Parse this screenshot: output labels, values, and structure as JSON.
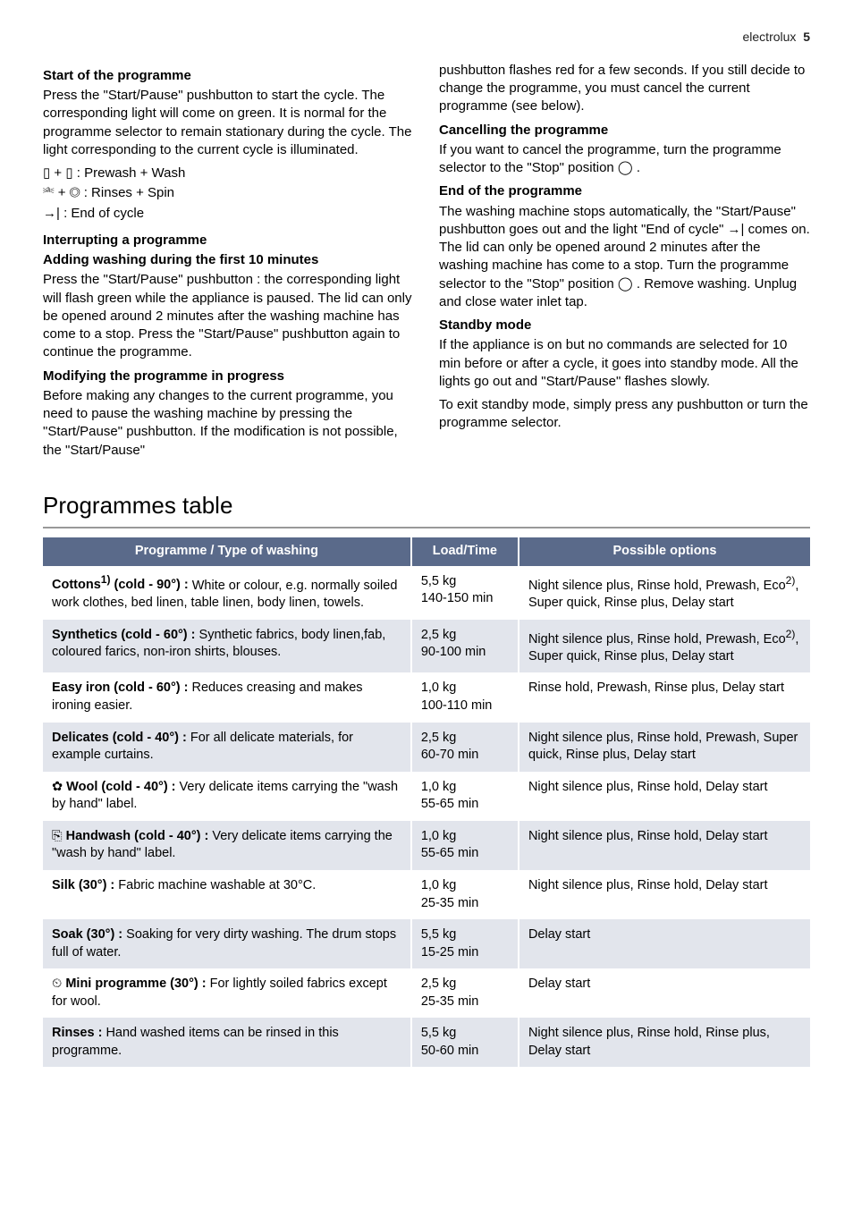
{
  "header": {
    "brand": "electrolux",
    "pagenum": "5"
  },
  "left": {
    "h1": "Start of the programme",
    "p1": "Press the \"Start/Pause\" pushbutton to start the cycle. The corresponding light will come on green. It is normal for the programme selector to remain stationary during the cycle. The light corresponding to the current cycle is illuminated.",
    "icon1": "▯ + ▯ : Prewash + Wash",
    "icon2": "⎃ + ◎ : Rinses + Spin",
    "icon3": "→| : End of cycle",
    "h2": "Interrupting a programme",
    "h2sub": "Adding washing during the first 10 minutes",
    "p2": "Press the \"Start/Pause\" pushbutton : the corresponding light will flash green while the appliance is paused. The lid can only be opened around 2 minutes after the washing machine has come to a stop. Press the \"Start/Pause\" pushbutton again to continue the programme.",
    "h3": "Modifying the programme in progress",
    "p3": "Before making any changes to the current programme, you need to pause the washing machine by pressing the \"Start/Pause\" pushbutton. If the modification is not possible, the \"Start/Pause\""
  },
  "right": {
    "p0": "pushbutton flashes red for a few seconds. If you still decide to change the programme, you must cancel the current programme (see below).",
    "h1": "Cancelling the programme",
    "p1": "If you want to cancel the programme, turn the programme selector to the \"Stop\" position ◯ .",
    "h2": "End of the programme",
    "p2": "The washing machine stops automatically, the \"Start/Pause\" pushbutton goes out and the light \"End of cycle\" →| comes on. The lid can only be opened around 2 minutes after the washing machine has come to a stop. Turn the programme selector to the \"Stop\" position ◯ . Remove washing. Unplug and close water inlet tap.",
    "h3": "Standby mode",
    "p3": "If the appliance is on but no commands are selected for 10 min before or after a cycle, it goes into standby mode. All the lights go out and \"Start/Pause\" flashes slowly.",
    "p4": "To exit standby mode, simply press any pushbutton or turn the programme selector."
  },
  "tableSection": {
    "title": "Programmes table",
    "headers": [
      "Programme / Type of washing",
      "Load/Time",
      "Possible options"
    ],
    "header_bg": "#5a6a8a",
    "header_fg": "#ffffff",
    "row_alt_bg": "#e2e5ec",
    "rows": [
      {
        "nameHtml": "Cottons<sup>1)</sup> (cold - 90°) :",
        "desc": " White or colour, e.g. normally soiled work clothes, bed linen, table linen, body linen, towels.",
        "load": "5,5 kg\n140-150 min",
        "options": "Night silence plus, Rinse hold, Prewash, Eco<sup>2)</sup>, Super quick, Rinse plus, Delay start"
      },
      {
        "nameHtml": "Synthetics (cold - 60°) :",
        "desc": " Synthetic fabrics, body linen,fab, coloured farics, non-iron shirts, blouses.",
        "load": "2,5 kg\n90-100 min",
        "options": "Night silence plus, Rinse hold, Prewash, Eco<sup>2)</sup>, Super quick, Rinse plus, Delay start"
      },
      {
        "nameHtml": "Easy iron (cold - 60°) :",
        "desc": " Reduces creasing and makes ironing easier.",
        "load": "1,0 kg\n100-110 min",
        "options": "Rinse hold, Prewash, Rinse plus, Delay start"
      },
      {
        "nameHtml": "Delicates (cold - 40°) :",
        "desc": " For all delicate materials, for example curtains.",
        "load": "2,5 kg\n60-70 min",
        "options": "Night silence plus, Rinse hold, Prewash, Super quick, Rinse plus, Delay start"
      },
      {
        "iconText": "✿",
        "nameHtml": " Wool (cold - 40°) :",
        "desc": " Very delicate items carrying the \"wash by hand\" label.",
        "load": "1,0 kg\n55-65 min",
        "options": "Night silence plus, Rinse hold, Delay start"
      },
      {
        "iconText": "⎘",
        "nameHtml": " Handwash (cold - 40°) :",
        "desc": " Very delicate items carrying the \"wash by hand\" label.",
        "load": "1,0 kg\n55-65 min",
        "options": "Night silence plus, Rinse hold, Delay start"
      },
      {
        "nameHtml": "Silk (30°) :",
        "desc": " Fabric machine washable at 30°C.",
        "load": "1,0 kg\n25-35 min",
        "options": "Night silence plus, Rinse hold, Delay start"
      },
      {
        "nameHtml": "Soak (30°) :",
        "desc": " Soaking for very dirty washing. The drum stops full of water.",
        "load": "5,5 kg\n15-25 min",
        "options": "Delay start"
      },
      {
        "iconText": "⏲",
        "nameHtml": " Mini programme (30°) :",
        "desc": " For lightly soiled fabrics except for wool.",
        "load": "2,5 kg\n25-35 min",
        "options": "Delay start"
      },
      {
        "nameHtml": "Rinses :",
        "desc": " Hand washed items can be rinsed in this programme.",
        "load": "5,5 kg\n50-60 min",
        "options": "Night silence plus, Rinse hold, Rinse plus, Delay start"
      }
    ]
  }
}
